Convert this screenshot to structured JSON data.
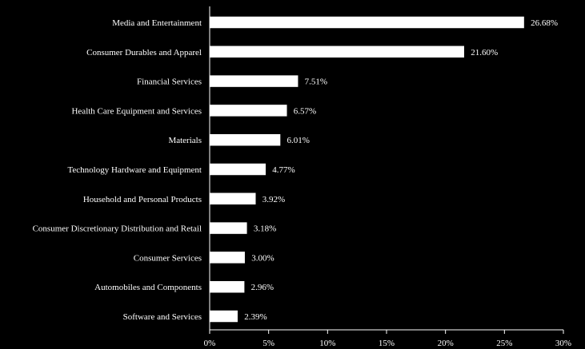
{
  "chart_data": {
    "type": "bar",
    "orientation": "horizontal",
    "categories": [
      "Media and Entertainment",
      "Consumer Durables and Apparel",
      "Financial Services",
      "Health Care Equipment and Services",
      "Materials",
      "Technology Hardware and Equipment",
      "Household and Personal Products",
      "Consumer Discretionary Distribution and Retail",
      "Consumer Services",
      "Automobiles and Components",
      "Software and Services"
    ],
    "values": [
      26.68,
      21.6,
      7.51,
      6.57,
      6.01,
      4.77,
      3.92,
      3.18,
      3.0,
      2.96,
      2.39
    ],
    "data_labels": [
      "26.68%",
      "21.60%",
      "7.51%",
      "6.57%",
      "6.01%",
      "4.77%",
      "3.92%",
      "3.18%",
      "3.00%",
      "2.96%",
      "2.39%"
    ],
    "title": "",
    "xlabel": "",
    "ylabel": "",
    "xlim": [
      0,
      30
    ],
    "ticks": [
      0,
      5,
      10,
      15,
      20,
      25,
      30
    ],
    "tick_labels": [
      "0%",
      "5%",
      "10%",
      "15%",
      "20%",
      "25%",
      "30%"
    ],
    "grid": false,
    "legend": "none",
    "colors": {
      "background": "#000000",
      "bar_fill": "#ffffff",
      "bar_stroke": "#000000",
      "text": "#ffffff",
      "axis": "#ffffff"
    }
  }
}
